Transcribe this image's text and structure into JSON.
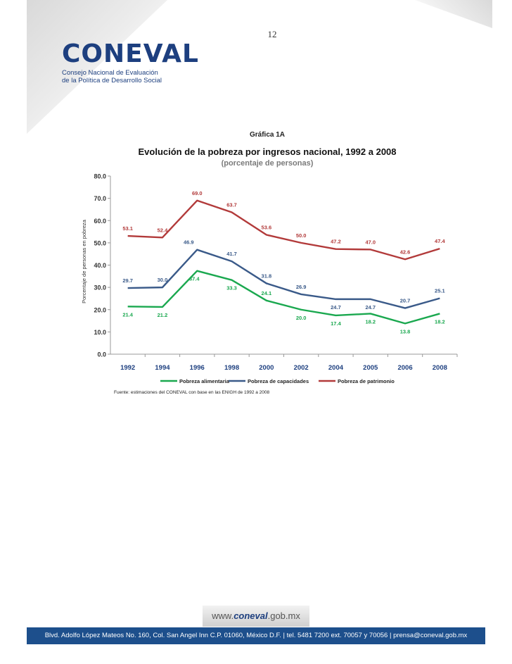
{
  "page": {
    "number": "12",
    "logo": {
      "text_main": "CONEVAL",
      "subtitle_line1": "Consejo Nacional de Evaluación",
      "subtitle_line2": "de la Política de Desarrollo Social"
    },
    "figure_label": "Gráfica 1A",
    "title": "Evolución de la pobreza por ingresos nacional, 1992 a 2008",
    "subtitle": "(porcentaje de personas)",
    "source": "Fuente: estimaciones del CONEVAL con base en las ENIGH de 1992 a 2008",
    "website_prefix": "www.",
    "website_brand": "coneval",
    "website_suffix": ".gob.mx",
    "footer": "Blvd. Adolfo López Mateos No. 160, Col. San Angel Inn C.P. 01060, México D.F. | tel. 5481 7200 ext. 70057 y 70056 | prensa@coneval.gob.mx",
    "colors": {
      "brand_blue": "#1d3f7f",
      "footer_blue": "#1d4f8c"
    }
  },
  "chart_data": {
    "type": "line",
    "title": "Evolución de la pobreza por ingresos nacional, 1992 a 2008",
    "subtitle": "(porcentaje de personas)",
    "ylabel": "Porcentaje de personas en pobreza",
    "xlabel": "",
    "categories": [
      "1992",
      "1994",
      "1996",
      "1998",
      "2000",
      "2002",
      "2004",
      "2005",
      "2006",
      "2008"
    ],
    "ylim": [
      0,
      80
    ],
    "yticks": [
      "0.0",
      "10.0",
      "20.0",
      "30.0",
      "40.0",
      "50.0",
      "60.0",
      "70.0",
      "80.0"
    ],
    "grid": false,
    "legend": "bottom",
    "series": [
      {
        "name": "Pobreza alimentaria",
        "color": "#1aa84f",
        "values": [
          21.4,
          21.2,
          37.4,
          33.3,
          24.1,
          20.0,
          17.4,
          18.2,
          13.8,
          18.2
        ],
        "labels": [
          "21.4",
          "21.2",
          "37.4",
          "33.3",
          "24.1",
          "20.0",
          "17.4",
          "18.2",
          "13.8",
          "18.2"
        ]
      },
      {
        "name": "Pobreza de capacidades",
        "color": "#3a5a89",
        "values": [
          29.7,
          30.0,
          46.9,
          41.7,
          31.8,
          26.9,
          24.7,
          24.7,
          20.7,
          25.1
        ],
        "labels": [
          "29.7",
          "30.0",
          "46.9",
          "41.7",
          "31.8",
          "26.9",
          "24.7",
          "24.7",
          "20.7",
          "25.1"
        ]
      },
      {
        "name": "Pobreza de patrimonio",
        "color": "#b23a3a",
        "values": [
          53.1,
          52.4,
          69.0,
          63.7,
          53.6,
          50.0,
          47.2,
          47.0,
          42.6,
          47.4
        ],
        "labels": [
          "53.1",
          "52.4",
          "69.0",
          "63.7",
          "53.6",
          "50.0",
          "47.2",
          "47.0",
          "42.6",
          "47.4"
        ]
      }
    ]
  }
}
